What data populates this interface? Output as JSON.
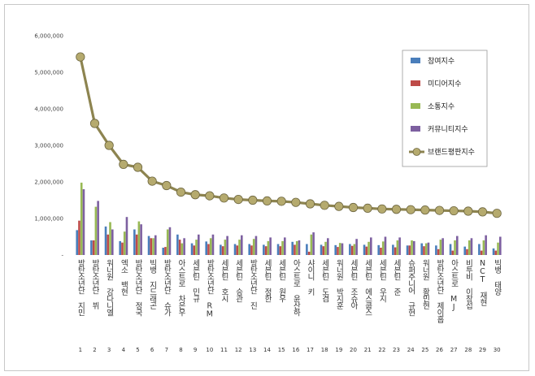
{
  "chart_data": {
    "type": "bar",
    "title": "",
    "xlabel": "",
    "ylabel": "",
    "ylim": [
      0,
      6000000
    ],
    "yticks": [
      "-",
      "1,000,000",
      "2,000,000",
      "3,000,000",
      "4,000,000",
      "5,000,000",
      "6,000,000"
    ],
    "grid": false,
    "legend_position": "right",
    "categories": [
      "방탄소년단 지민",
      "방탄소년단 뷔",
      "워너원 강다니엘",
      "엑소 백현",
      "방탄소년단 정국",
      "빅뱅 지드래곤",
      "방탄소년단 슈가",
      "아스트로 차은우",
      "세븐틴 민규",
      "방탄소년단 RM",
      "세븐틴 호시",
      "세븐틴 승관",
      "방탄소년단 진",
      "세븐틴 정한",
      "세븐틴 원우",
      "아스트로 윤산하",
      "샤이니 키",
      "세븐틴 도겸",
      "워너원 박지훈",
      "세븐틴 조슈아",
      "세븐틴 에스쿱스",
      "세븐틴 우지",
      "세븐틴 준",
      "슈퍼주니어 규현",
      "워너원 황민현",
      "방탄소년단 제이홉",
      "아스트로 MJ",
      "비투비 이창섭",
      "NCT 재현",
      "빅뱅 태양"
    ],
    "ranks": [
      "1",
      "2",
      "3",
      "4",
      "5",
      "6",
      "7",
      "8",
      "9",
      "10",
      "11",
      "12",
      "13",
      "14",
      "15",
      "16",
      "17",
      "18",
      "19",
      "20",
      "21",
      "22",
      "23",
      "24",
      "25",
      "26",
      "27",
      "28",
      "29",
      "30"
    ],
    "series": [
      {
        "name": "참여지수",
        "kind": "bar",
        "color": "#4a7ebb",
        "values": [
          680000,
          400000,
          780000,
          380000,
          700000,
          520000,
          200000,
          560000,
          320000,
          370000,
          280000,
          300000,
          300000,
          280000,
          300000,
          360000,
          300000,
          280000,
          270000,
          300000,
          280000,
          270000,
          280000,
          260000,
          320000,
          260000,
          300000,
          230000,
          300000,
          180000
        ]
      },
      {
        "name": "미디어지수",
        "kind": "bar",
        "color": "#be4b48",
        "values": [
          940000,
          400000,
          560000,
          340000,
          560000,
          460000,
          220000,
          420000,
          260000,
          300000,
          240000,
          260000,
          260000,
          240000,
          240000,
          280000,
          90000,
          240000,
          220000,
          250000,
          230000,
          200000,
          210000,
          260000,
          240000,
          160000,
          120000,
          160000,
          120000,
          120000
        ]
      },
      {
        "name": "소통지수",
        "kind": "bar",
        "color": "#98b954",
        "values": [
          1980000,
          1320000,
          900000,
          640000,
          920000,
          460000,
          700000,
          320000,
          420000,
          460000,
          420000,
          420000,
          440000,
          380000,
          380000,
          380000,
          560000,
          360000,
          330000,
          300000,
          360000,
          370000,
          400000,
          400000,
          320000,
          420000,
          400000,
          400000,
          400000,
          340000
        ]
      },
      {
        "name": "커뮤니티지수",
        "kind": "bar",
        "color": "#7d60a0",
        "values": [
          1800000,
          1480000,
          700000,
          1040000,
          840000,
          540000,
          760000,
          460000,
          560000,
          560000,
          520000,
          540000,
          520000,
          480000,
          480000,
          400000,
          620000,
          460000,
          320000,
          440000,
          480000,
          500000,
          480000,
          380000,
          340000,
          460000,
          520000,
          460000,
          540000,
          500000
        ]
      },
      {
        "name": "브랜드평판지수",
        "kind": "line",
        "color": "#8d8450",
        "marker_color": "#b5aa6e",
        "values": [
          5420000,
          3600000,
          3000000,
          2480000,
          2400000,
          2020000,
          1900000,
          1720000,
          1650000,
          1620000,
          1560000,
          1520000,
          1500000,
          1480000,
          1470000,
          1440000,
          1400000,
          1360000,
          1330000,
          1300000,
          1280000,
          1260000,
          1250000,
          1240000,
          1230000,
          1220000,
          1210000,
          1200000,
          1180000,
          1140000
        ]
      }
    ]
  }
}
